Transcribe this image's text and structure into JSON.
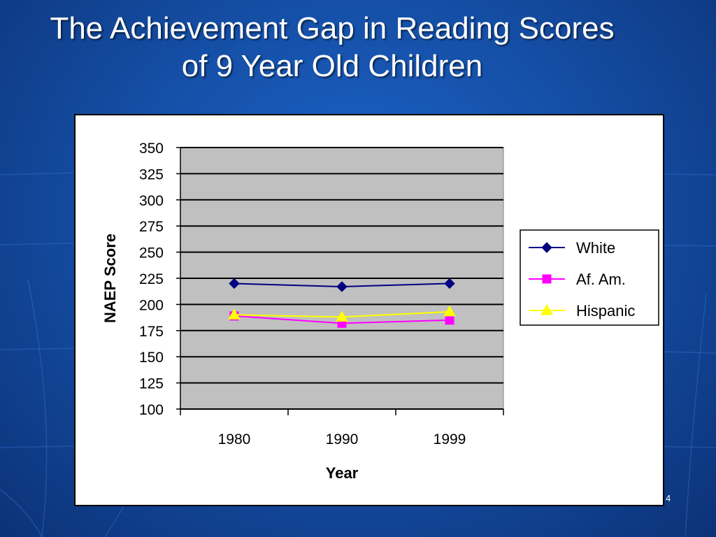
{
  "slide": {
    "title_line1": "The Achievement Gap in Reading Scores",
    "title_line2": "of 9 Year Old Children",
    "page_number": "4"
  },
  "colors": {
    "plot_background": "#c0c0c0",
    "white_series": "#000080",
    "afam_series": "#ff00ff",
    "hispanic_series": "#ffff00"
  },
  "chart_data": {
    "type": "line",
    "title": "",
    "xlabel": "Year",
    "ylabel": "NAEP Score",
    "categories": [
      "1980",
      "1990",
      "1999"
    ],
    "ylim": [
      100,
      350
    ],
    "yticks": [
      100,
      125,
      150,
      175,
      200,
      225,
      250,
      275,
      300,
      325,
      350
    ],
    "grid": true,
    "legend_position": "right",
    "series": [
      {
        "name": "White",
        "values": [
          220,
          217,
          220
        ],
        "color": "#000080",
        "marker": "diamond"
      },
      {
        "name": "Af. Am.",
        "values": [
          189,
          182,
          185
        ],
        "color": "#ff00ff",
        "marker": "square"
      },
      {
        "name": "Hispanic",
        "values": [
          190,
          188,
          193
        ],
        "color": "#ffff00",
        "marker": "triangle"
      }
    ]
  }
}
